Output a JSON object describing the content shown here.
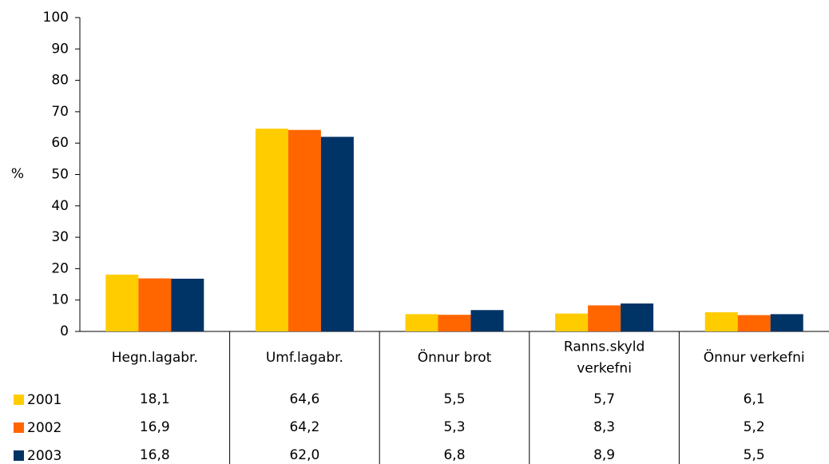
{
  "chart_data": {
    "type": "bar",
    "ylabel": "%",
    "categories": [
      "Hegn.lagabr.",
      "Umf.lagabr.",
      "Önnur brot",
      "Ranns.skyld verkefni",
      "Önnur verkefni"
    ],
    "series": [
      {
        "name": "2001",
        "color": "#ffcc00",
        "values": [
          18.1,
          64.6,
          5.5,
          5.7,
          6.1
        ],
        "value_labels": [
          "18,1",
          "64,6",
          "5,5",
          "5,7",
          "6,1"
        ]
      },
      {
        "name": "2002",
        "color": "#ff6600",
        "values": [
          16.9,
          64.2,
          5.3,
          8.3,
          5.2
        ],
        "value_labels": [
          "16,9",
          "64,2",
          "5,3",
          "8,3",
          "5,2"
        ]
      },
      {
        "name": "2003",
        "color": "#003366",
        "values": [
          16.8,
          62.0,
          6.8,
          8.9,
          5.5
        ],
        "value_labels": [
          "16,8",
          "62,0",
          "6,8",
          "8,9",
          "5,5"
        ]
      }
    ],
    "ylim": [
      0,
      100
    ],
    "yticks": [
      0,
      10,
      20,
      30,
      40,
      50,
      60,
      70,
      80,
      90,
      100
    ],
    "grid": false
  }
}
